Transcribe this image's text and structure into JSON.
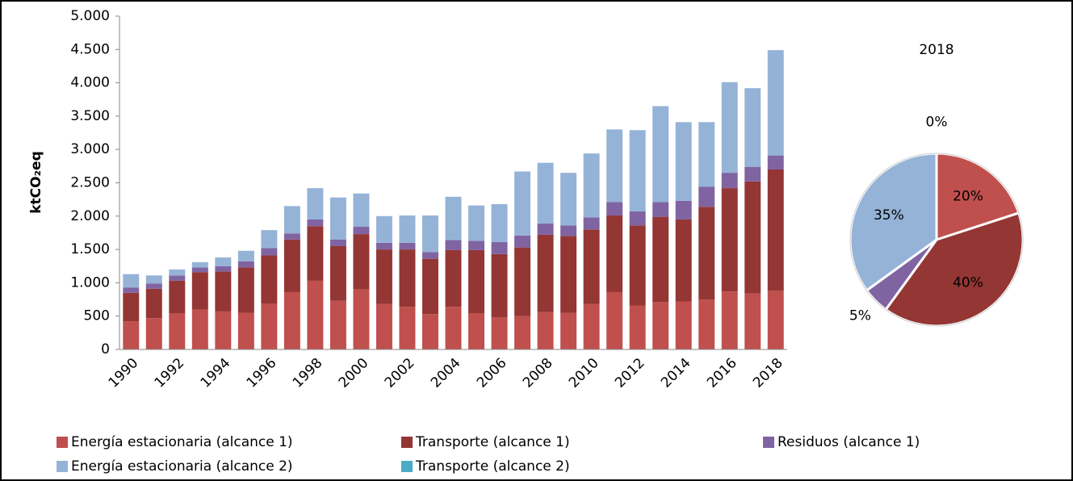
{
  "chart_data": [
    {
      "type": "bar",
      "stacked": true,
      "ylabel": "ktCO₂eq",
      "categories": [
        "1990",
        null,
        "1992",
        null,
        "1994",
        null,
        "1996",
        null,
        "1998",
        null,
        "2000",
        null,
        "2002",
        null,
        "2004",
        null,
        "2006",
        null,
        "2008",
        null,
        "2010",
        null,
        "2012",
        null,
        "2014",
        null,
        "2016",
        null,
        "2018"
      ],
      "series": [
        {
          "name": "Energía estacionaria (alcance 1)",
          "color": "#c0504d",
          "values": [
            420,
            470,
            540,
            600,
            570,
            550,
            690,
            860,
            1030,
            730,
            900,
            680,
            640,
            530,
            640,
            540,
            480,
            500,
            560,
            550,
            680,
            860,
            660,
            710,
            720,
            750,
            870,
            840,
            880
          ]
        },
        {
          "name": "Transporte (alcance 1)",
          "color": "#943634",
          "values": [
            430,
            440,
            490,
            560,
            600,
            680,
            720,
            790,
            820,
            820,
            830,
            820,
            860,
            830,
            850,
            950,
            950,
            1030,
            1160,
            1150,
            1120,
            1150,
            1200,
            1280,
            1230,
            1390,
            1550,
            1680,
            1820
          ]
        },
        {
          "name": "Residuos (alcance 1)",
          "color": "#8064a2",
          "values": [
            80,
            80,
            80,
            70,
            80,
            90,
            110,
            90,
            100,
            100,
            110,
            100,
            100,
            100,
            150,
            140,
            180,
            180,
            170,
            160,
            180,
            200,
            210,
            220,
            280,
            300,
            230,
            220,
            210
          ]
        },
        {
          "name": "Energía estacionaria (alcance 2)",
          "color": "#95b3d7",
          "values": [
            200,
            120,
            90,
            80,
            130,
            160,
            270,
            410,
            470,
            630,
            500,
            400,
            410,
            550,
            650,
            530,
            570,
            960,
            910,
            790,
            960,
            1090,
            1220,
            1440,
            1180,
            970,
            1360,
            1180,
            1580
          ]
        },
        {
          "name": "Transporte (alcance 2)",
          "color": "#4bacc6",
          "values": [
            0,
            0,
            0,
            0,
            0,
            0,
            0,
            0,
            0,
            0,
            0,
            0,
            0,
            0,
            0,
            0,
            0,
            0,
            0,
            0,
            0,
            0,
            0,
            0,
            0,
            0,
            0,
            0,
            0
          ]
        }
      ],
      "ylim": [
        0,
        5000
      ],
      "yticks": [
        0,
        500,
        {
          "value": 1000,
          "label": "1.000"
        },
        {
          "value": 1500,
          "label": "1.500"
        },
        {
          "value": 2000,
          "label": "2.000"
        },
        {
          "value": 2500,
          "label": "2.500"
        },
        {
          "value": 3000,
          "label": "3.000"
        },
        {
          "value": 3500,
          "label": "3.500"
        },
        {
          "value": 4000,
          "label": "4.000"
        },
        {
          "value": 4500,
          "label": "4.500"
        },
        {
          "value": 5000,
          "label": "5.000"
        }
      ],
      "grid": false,
      "legend": "bottom"
    },
    {
      "type": "pie",
      "title": "2018",
      "values": [
        20,
        40,
        5,
        35,
        0
      ],
      "value_labels": [
        "20%",
        "40%",
        "5%",
        "35%",
        "0%"
      ],
      "colors": [
        "#c0504d",
        "#943634",
        "#8064a2",
        "#95b3d7",
        "#4bacc6"
      ]
    }
  ]
}
